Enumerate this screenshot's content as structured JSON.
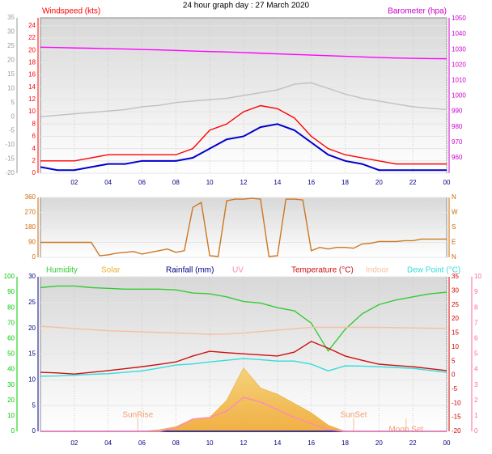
{
  "chart_data": [
    {
      "type": "line",
      "title": "24 hour graph day : 27 March 2020",
      "xlim": [
        0,
        24
      ],
      "xticks": [
        {
          "value": 2,
          "label": "02"
        },
        {
          "value": 4,
          "label": "04"
        },
        {
          "value": 6,
          "label": "06"
        },
        {
          "value": 8,
          "label": "08"
        },
        10,
        12,
        14,
        16,
        18,
        20,
        22,
        {
          "value": 24,
          "label": "00"
        }
      ],
      "grid": true,
      "y_axes": [
        {
          "side": "left",
          "color": "#999999",
          "lim": [
            -20,
            35
          ],
          "ticks": [
            -20,
            -15,
            -10,
            -5,
            0,
            5,
            10,
            15,
            20,
            25,
            30,
            35
          ]
        },
        {
          "side": "left",
          "color": "#ff0000",
          "label": "Windspeed (kts)",
          "lim": [
            0,
            25.3
          ],
          "ticks": [
            0,
            2,
            4,
            6,
            8,
            10,
            12,
            14,
            16,
            18,
            20,
            22,
            24
          ]
        },
        {
          "side": "right",
          "color": "#cc00cc",
          "label": "Barometer (hpa)",
          "lim": [
            950,
            1050.5
          ],
          "ticks": [
            960,
            970,
            980,
            990,
            1000,
            1010,
            1020,
            1030,
            1040,
            1050
          ]
        }
      ],
      "series": [
        {
          "axis": 0,
          "color": "#c0c0c0",
          "x": [
            0,
            1,
            2,
            3,
            4,
            5,
            6,
            7,
            8,
            9,
            10,
            11,
            12,
            13,
            14,
            15,
            16,
            17,
            18,
            19,
            20,
            21,
            22,
            23,
            24
          ],
          "values": [
            0,
            0.5,
            1,
            1.5,
            2,
            2.5,
            3.5,
            4,
            5,
            5.5,
            6,
            6.5,
            7.5,
            8.5,
            9.5,
            11.5,
            12,
            10,
            8,
            6.5,
            5.5,
            4.5,
            3.5,
            3,
            2.5
          ]
        },
        {
          "axis": 2,
          "color": "#ff00ff",
          "x": [
            0,
            1,
            2,
            3,
            4,
            5,
            6,
            7,
            8,
            9,
            10,
            11,
            12,
            13,
            14,
            15,
            16,
            17,
            18,
            19,
            20,
            21,
            22,
            23,
            24
          ],
          "values": [
            1031.5,
            1031.3,
            1031,
            1030.8,
            1030.5,
            1030.3,
            1030,
            1029.7,
            1029.4,
            1029,
            1028.7,
            1028.4,
            1028,
            1027.6,
            1027.2,
            1026.8,
            1026.4,
            1026,
            1025.6,
            1025.2,
            1024.8,
            1024.5,
            1024.3,
            1024.1,
            1024
          ]
        },
        {
          "axis": 1,
          "color": "#ff0000",
          "x": [
            0,
            1,
            2,
            3,
            4,
            5,
            6,
            7,
            8,
            9,
            10,
            11,
            12,
            13,
            14,
            15,
            16,
            17,
            18,
            19,
            20,
            21,
            22,
            23,
            24
          ],
          "values": [
            2,
            2,
            2,
            2.5,
            3,
            3,
            3,
            3,
            3,
            4,
            7,
            8,
            10,
            11,
            10.5,
            9,
            6,
            4,
            3,
            2.5,
            2,
            1.5,
            1.5,
            1.5,
            1.5
          ]
        },
        {
          "axis": 1,
          "color": "#0000cc",
          "x": [
            0,
            1,
            2,
            3,
            4,
            5,
            6,
            7,
            8,
            9,
            10,
            11,
            12,
            13,
            14,
            15,
            16,
            17,
            18,
            19,
            20,
            21,
            22,
            23,
            24
          ],
          "values": [
            1,
            0.5,
            0.5,
            1,
            1.5,
            1.5,
            2,
            2,
            2,
            2.5,
            4,
            5.5,
            6,
            7.5,
            8,
            7,
            5,
            3,
            2,
            1.5,
            0.5,
            0.5,
            0.5,
            0.5,
            0.5
          ]
        }
      ]
    },
    {
      "type": "line",
      "xlim": [
        0,
        24
      ],
      "grid": true,
      "y_axes": [
        {
          "side": "left",
          "color": "#cc6600",
          "lim": [
            0,
            360
          ],
          "ticks": [
            0,
            90,
            180,
            270,
            360
          ]
        },
        {
          "side": "right",
          "color": "#cc6600",
          "lim": [
            0,
            360
          ],
          "ticks": [
            {
              "value": 0,
              "label": "N"
            },
            {
              "value": 90,
              "label": "E"
            },
            {
              "value": 180,
              "label": "S"
            },
            {
              "value": 270,
              "label": "W"
            },
            {
              "value": 360,
              "label": "N"
            }
          ]
        }
      ],
      "series": [
        {
          "axis": 0,
          "color": "#cc7722",
          "x": [
            0,
            0.5,
            1,
            1.5,
            2,
            2.5,
            3,
            3.5,
            4,
            4.5,
            5,
            5.5,
            6,
            6.5,
            7,
            7.5,
            8,
            8.5,
            9,
            9.5,
            10,
            10.5,
            11,
            11.5,
            12,
            12.5,
            13,
            13.5,
            14,
            14.5,
            15,
            15.5,
            16,
            16.5,
            17,
            17.5,
            18,
            18.5,
            19,
            19.5,
            20,
            20.5,
            21,
            21.5,
            22,
            22.5,
            23,
            23.5,
            24
          ],
          "values": [
            90,
            90,
            90,
            90,
            90,
            90,
            90,
            10,
            15,
            25,
            30,
            35,
            20,
            30,
            40,
            50,
            30,
            40,
            300,
            330,
            10,
            5,
            340,
            350,
            350,
            355,
            350,
            5,
            10,
            350,
            350,
            345,
            40,
            60,
            50,
            60,
            60,
            55,
            80,
            85,
            95,
            95,
            95,
            100,
            100,
            110,
            110,
            110,
            110
          ]
        }
      ]
    },
    {
      "type": "line",
      "xlim": [
        0,
        24
      ],
      "xticks": [
        {
          "value": 2,
          "label": "02"
        },
        {
          "value": 4,
          "label": "04"
        },
        {
          "value": 6,
          "label": "06"
        },
        {
          "value": 8,
          "label": "08"
        },
        10,
        12,
        14,
        16,
        18,
        20,
        22,
        {
          "value": 24,
          "label": "00"
        }
      ],
      "grid": true,
      "y_axes": [
        {
          "side": "left",
          "color": "#00cc00",
          "lim": [
            0,
            100
          ],
          "ticks": [
            0,
            10,
            20,
            30,
            40,
            50,
            60,
            70,
            80,
            90,
            100
          ]
        },
        {
          "side": "left",
          "color": "#000080",
          "lim": [
            0,
            30
          ],
          "ticks": [
            0,
            5,
            10,
            15,
            20,
            25,
            30
          ]
        },
        {
          "side": "right",
          "color": "#cc0000",
          "lim": [
            -20,
            35
          ],
          "ticks": [
            -20,
            -15,
            -10,
            -5,
            0,
            5,
            10,
            15,
            20,
            25,
            30,
            35
          ]
        },
        {
          "side": "right",
          "color": "#ff6699",
          "lim": [
            0,
            10
          ],
          "ticks": [
            0,
            1,
            2,
            3,
            4,
            5,
            6,
            7,
            8,
            9,
            10
          ]
        }
      ],
      "series": [
        {
          "name": "Humidity",
          "axis": 0,
          "color": "#33cc33",
          "x": [
            0,
            1,
            2,
            3,
            4,
            5,
            6,
            7,
            8,
            9,
            10,
            11,
            12,
            13,
            14,
            15,
            16,
            17,
            18,
            19,
            20,
            21,
            22,
            23,
            24
          ],
          "values": [
            93,
            94,
            94,
            93,
            92.5,
            92,
            92,
            92,
            91.5,
            89.5,
            89,
            87,
            84,
            83,
            80,
            78,
            70,
            52,
            66,
            76,
            82,
            85,
            87,
            89,
            90
          ]
        },
        {
          "name": "Solar",
          "axis": 0,
          "color": "#e8b23a",
          "style": "area",
          "x": [
            0,
            1,
            2,
            3,
            4,
            5,
            6,
            7,
            8,
            9,
            10,
            11,
            12,
            13,
            14,
            15,
            16,
            17,
            18,
            19,
            20,
            21,
            22,
            23,
            24
          ],
          "values": [
            0,
            0,
            0,
            0,
            0,
            0,
            0,
            1,
            3,
            8,
            9,
            20,
            41,
            28,
            24,
            18,
            12,
            4,
            0,
            0,
            0,
            0,
            0,
            0,
            0
          ]
        },
        {
          "name": "Rainfall (mm)",
          "axis": 1,
          "color": "#000080",
          "x": [
            0,
            1,
            2,
            3,
            4,
            5,
            6,
            7,
            8,
            9,
            10,
            11,
            12,
            13,
            14,
            15,
            16,
            17,
            18,
            19,
            20,
            21,
            22,
            23,
            24
          ],
          "values": [
            0,
            0,
            0,
            0,
            0,
            0,
            0,
            0,
            0,
            0,
            0,
            0,
            0,
            0,
            0,
            0,
            0,
            0,
            0,
            0,
            0,
            0,
            0,
            0,
            0
          ]
        },
        {
          "name": "UV",
          "axis": 3,
          "color": "#ff88bb",
          "x": [
            0,
            1,
            2,
            3,
            4,
            5,
            6,
            7,
            8,
            9,
            10,
            11,
            12,
            13,
            14,
            15,
            16,
            17,
            18,
            19,
            20,
            21,
            22,
            23,
            24
          ],
          "values": [
            0,
            0,
            0,
            0,
            0,
            0,
            0,
            0,
            0.2,
            0.8,
            0.9,
            1.3,
            2.2,
            1.9,
            1.4,
            0.9,
            0.5,
            0.1,
            0,
            0,
            0,
            0,
            0,
            0,
            0
          ]
        },
        {
          "name": "Temperature (°C)",
          "axis": 2,
          "color": "#cc1111",
          "x": [
            0,
            1,
            2,
            3,
            4,
            5,
            6,
            7,
            8,
            9,
            10,
            11,
            12,
            13,
            14,
            15,
            16,
            17,
            18,
            19,
            20,
            21,
            22,
            23,
            24
          ],
          "values": [
            1,
            0.8,
            0.4,
            1,
            1.6,
            2.3,
            3,
            3.8,
            4.7,
            6.8,
            8.5,
            8,
            7.6,
            7.2,
            6.8,
            8.2,
            12,
            9.6,
            6.8,
            5.3,
            3.9,
            3.4,
            3,
            2.3,
            1.6
          ]
        },
        {
          "name": "Indoor",
          "axis": 2,
          "color": "#f5c0a0",
          "x": [
            0,
            1,
            2,
            3,
            4,
            5,
            6,
            7,
            8,
            9,
            10,
            11,
            12,
            13,
            14,
            15,
            16,
            17,
            18,
            19,
            20,
            21,
            22,
            23,
            24
          ],
          "values": [
            17.4,
            17,
            16.6,
            16.2,
            15.8,
            15.6,
            15.4,
            15.2,
            15,
            14.8,
            14.5,
            14.6,
            15,
            15.5,
            16,
            16.5,
            17,
            17,
            17,
            17,
            17,
            16.9,
            16.8,
            16.7,
            16.6
          ]
        },
        {
          "name": "Dew Point (°C)",
          "axis": 2,
          "color": "#33dddd",
          "x": [
            0,
            1,
            2,
            3,
            4,
            5,
            6,
            7,
            8,
            9,
            10,
            11,
            12,
            13,
            14,
            15,
            16,
            17,
            18,
            19,
            20,
            21,
            22,
            23,
            24
          ],
          "values": [
            -0.4,
            -0.3,
            0,
            0.3,
            0.5,
            1,
            1.5,
            2.5,
            3.6,
            4,
            4.7,
            5.3,
            5.9,
            5.5,
            5,
            5,
            3.9,
            1.5,
            3.3,
            3.2,
            3,
            2.7,
            2.4,
            1.7,
            1
          ]
        }
      ],
      "annotations": [
        {
          "text": "SunRise",
          "x": 5.75
        },
        {
          "text": "SunSet",
          "x": 18.5
        },
        {
          "text": "Moon Set",
          "x": 21.6
        }
      ]
    }
  ]
}
